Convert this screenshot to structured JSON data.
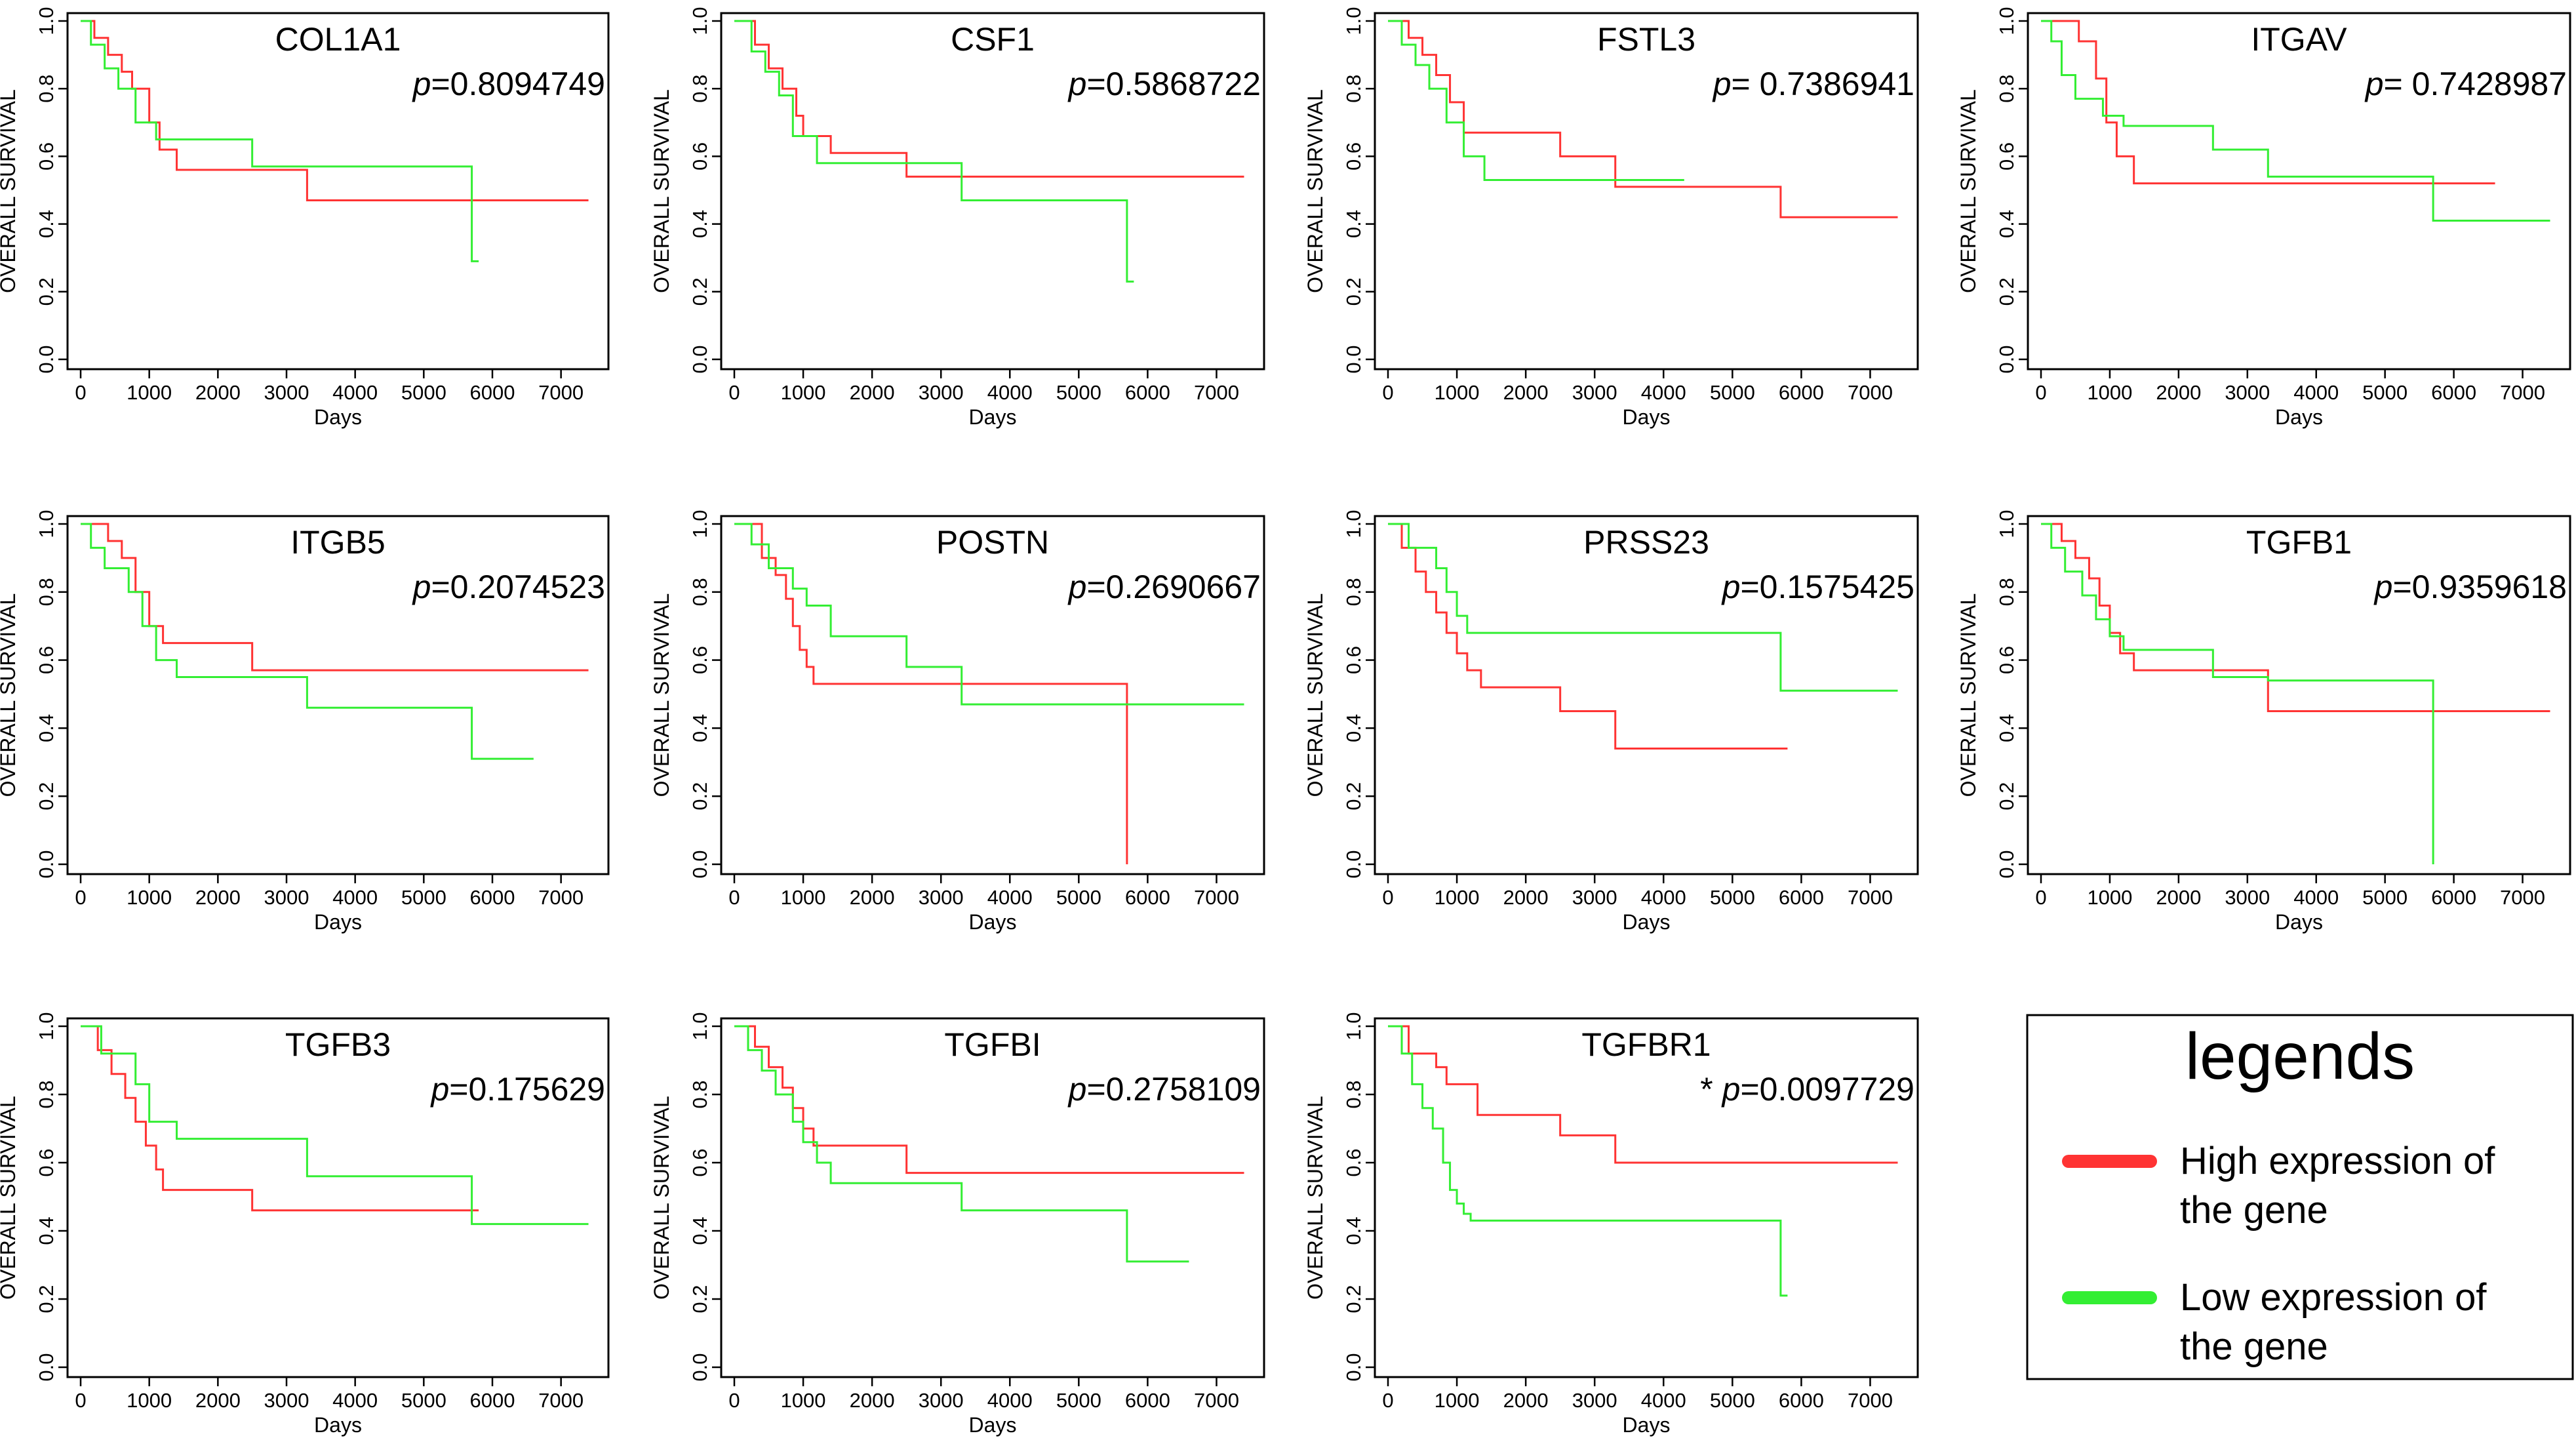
{
  "colors": {
    "high": "#ff3333",
    "low": "#33ee33",
    "axis": "#000000"
  },
  "common": {
    "xlabel": "Days",
    "ylabel": "OVERALL SURVIVAL",
    "xlim": [
      0,
      7500
    ],
    "ylim": [
      0,
      1.0
    ],
    "xticks": [
      0,
      1000,
      2000,
      3000,
      4000,
      5000,
      6000,
      7000
    ],
    "yticks": [
      0.0,
      0.2,
      0.4,
      0.6,
      0.8,
      1.0
    ],
    "xtick_labels": [
      "0",
      "1000",
      "2000",
      "3000",
      "4000",
      "5000",
      "6000",
      "7000"
    ],
    "ytick_labels": [
      "0.0",
      "0.2",
      "0.4",
      "0.6",
      "0.8",
      "1.0"
    ]
  },
  "legend": {
    "title": "legends",
    "items": [
      {
        "line1": "High expression of",
        "line2": "the gene",
        "color_key": "high"
      },
      {
        "line1": "Low expression of",
        "line2": "the gene",
        "color_key": "low"
      }
    ]
  },
  "chart_data": [
    {
      "type": "line",
      "title": "COL1A1",
      "pvalue": "p=0.8094749",
      "star": "",
      "series": [
        {
          "name": "High expression of the gene",
          "color_key": "high",
          "x": [
            0,
            200,
            400,
            600,
            750,
            1000,
            1150,
            1400,
            3300,
            7400
          ],
          "values": [
            1.0,
            0.95,
            0.9,
            0.85,
            0.8,
            0.7,
            0.62,
            0.56,
            0.47,
            0.47
          ]
        },
        {
          "name": "Low expression of the gene",
          "color_key": "low",
          "x": [
            0,
            150,
            350,
            550,
            800,
            1100,
            2500,
            5700,
            5700,
            5800
          ],
          "values": [
            1.0,
            0.93,
            0.86,
            0.8,
            0.7,
            0.65,
            0.57,
            0.57,
            0.29,
            0.29
          ]
        }
      ]
    },
    {
      "type": "line",
      "title": "CSF1",
      "pvalue": "p=0.5868722",
      "star": "",
      "series": [
        {
          "name": "High expression of the gene",
          "color_key": "high",
          "x": [
            0,
            300,
            500,
            700,
            900,
            1000,
            1400,
            2500,
            7400
          ],
          "values": [
            1.0,
            0.93,
            0.86,
            0.8,
            0.72,
            0.66,
            0.61,
            0.54,
            0.54
          ]
        },
        {
          "name": "Low expression of the gene",
          "color_key": "low",
          "x": [
            0,
            250,
            450,
            650,
            850,
            1200,
            3300,
            5700,
            5700,
            5800
          ],
          "values": [
            1.0,
            0.91,
            0.85,
            0.78,
            0.66,
            0.58,
            0.47,
            0.47,
            0.23,
            0.23
          ]
        }
      ]
    },
    {
      "type": "line",
      "title": "FSTL3",
      "pvalue": "p= 0.7386941",
      "star": "",
      "series": [
        {
          "name": "High expression of the gene",
          "color_key": "high",
          "x": [
            0,
            300,
            500,
            700,
            900,
            1100,
            2500,
            3300,
            5700,
            7400
          ],
          "values": [
            1.0,
            0.95,
            0.9,
            0.84,
            0.76,
            0.67,
            0.6,
            0.51,
            0.42,
            0.42
          ]
        },
        {
          "name": "Low expression of the gene",
          "color_key": "low",
          "x": [
            0,
            200,
            400,
            600,
            850,
            1100,
            1400,
            4300
          ],
          "values": [
            1.0,
            0.93,
            0.87,
            0.8,
            0.7,
            0.6,
            0.53,
            0.53
          ]
        }
      ]
    },
    {
      "type": "line",
      "title": "ITGAV",
      "pvalue": "p= 0.7428987",
      "star": "",
      "series": [
        {
          "name": "High expression of the gene",
          "color_key": "high",
          "x": [
            0,
            550,
            800,
            950,
            1100,
            1350,
            6600
          ],
          "values": [
            1.0,
            0.94,
            0.83,
            0.7,
            0.6,
            0.52,
            0.52
          ]
        },
        {
          "name": "Low expression of the gene",
          "color_key": "low",
          "x": [
            0,
            150,
            300,
            500,
            900,
            1200,
            2500,
            3300,
            5700,
            7400
          ],
          "values": [
            1.0,
            0.94,
            0.84,
            0.77,
            0.72,
            0.69,
            0.62,
            0.54,
            0.41,
            0.41
          ]
        }
      ]
    },
    {
      "type": "line",
      "title": "ITGB5",
      "pvalue": "p=0.2074523",
      "star": "",
      "series": [
        {
          "name": "High expression of the gene",
          "color_key": "high",
          "x": [
            0,
            400,
            600,
            800,
            1000,
            1200,
            2500,
            7400
          ],
          "values": [
            1.0,
            0.95,
            0.9,
            0.8,
            0.7,
            0.65,
            0.57,
            0.57
          ]
        },
        {
          "name": "Low expression of the gene",
          "color_key": "low",
          "x": [
            0,
            150,
            350,
            700,
            900,
            1100,
            1400,
            3300,
            5700,
            6600
          ],
          "values": [
            1.0,
            0.93,
            0.87,
            0.8,
            0.7,
            0.6,
            0.55,
            0.46,
            0.31,
            0.31
          ]
        }
      ]
    },
    {
      "type": "line",
      "title": "POSTN",
      "pvalue": "p=0.2690667",
      "star": "",
      "series": [
        {
          "name": "High expression of the gene",
          "color_key": "high",
          "x": [
            0,
            400,
            600,
            750,
            850,
            950,
            1050,
            1150,
            5700,
            5700
          ],
          "values": [
            1.0,
            0.9,
            0.85,
            0.78,
            0.7,
            0.63,
            0.58,
            0.53,
            0.53,
            0.0
          ]
        },
        {
          "name": "Low expression of the gene",
          "color_key": "low",
          "x": [
            0,
            250,
            500,
            850,
            1050,
            1400,
            2500,
            3300,
            7400
          ],
          "values": [
            1.0,
            0.94,
            0.87,
            0.81,
            0.76,
            0.67,
            0.58,
            0.47,
            0.47
          ]
        }
      ]
    },
    {
      "type": "line",
      "title": "PRSS23",
      "pvalue": "p=0.1575425",
      "star": "",
      "series": [
        {
          "name": "High expression of the gene",
          "color_key": "high",
          "x": [
            0,
            200,
            400,
            550,
            700,
            850,
            1000,
            1150,
            1350,
            2500,
            3300,
            5800
          ],
          "values": [
            1.0,
            0.93,
            0.86,
            0.8,
            0.74,
            0.68,
            0.62,
            0.57,
            0.52,
            0.45,
            0.34,
            0.34
          ]
        },
        {
          "name": "Low expression of the gene",
          "color_key": "low",
          "x": [
            0,
            300,
            700,
            850,
            1000,
            1150,
            5700,
            7400
          ],
          "values": [
            1.0,
            0.93,
            0.87,
            0.8,
            0.73,
            0.68,
            0.51,
            0.51
          ]
        }
      ]
    },
    {
      "type": "line",
      "title": "TGFB1",
      "pvalue": "p=0.9359618",
      "star": "",
      "series": [
        {
          "name": "High expression of the gene",
          "color_key": "high",
          "x": [
            0,
            300,
            500,
            700,
            850,
            1000,
            1150,
            1350,
            3300,
            7400
          ],
          "values": [
            1.0,
            0.95,
            0.9,
            0.84,
            0.76,
            0.68,
            0.62,
            0.57,
            0.45,
            0.45
          ]
        },
        {
          "name": "Low expression of the gene",
          "color_key": "low",
          "x": [
            0,
            150,
            350,
            600,
            800,
            1000,
            1200,
            2500,
            3300,
            5700,
            5700
          ],
          "values": [
            1.0,
            0.93,
            0.86,
            0.79,
            0.72,
            0.67,
            0.63,
            0.55,
            0.54,
            0.54,
            0.0
          ]
        }
      ]
    },
    {
      "type": "line",
      "title": "TGFB3",
      "pvalue": "p=0.175629",
      "star": "",
      "series": [
        {
          "name": "High expression of the gene",
          "color_key": "high",
          "x": [
            0,
            250,
            450,
            650,
            800,
            950,
            1100,
            1200,
            2500,
            5800
          ],
          "values": [
            1.0,
            0.93,
            0.86,
            0.79,
            0.72,
            0.65,
            0.58,
            0.52,
            0.46,
            0.46
          ]
        },
        {
          "name": "Low expression of the gene",
          "color_key": "low",
          "x": [
            0,
            300,
            800,
            1000,
            1400,
            3300,
            5700,
            7400
          ],
          "values": [
            1.0,
            0.92,
            0.83,
            0.72,
            0.67,
            0.56,
            0.42,
            0.42
          ]
        }
      ]
    },
    {
      "type": "line",
      "title": "TGFBI",
      "pvalue": "p=0.2758109",
      "star": "",
      "series": [
        {
          "name": "High expression of the gene",
          "color_key": "high",
          "x": [
            0,
            300,
            500,
            700,
            850,
            1000,
            1150,
            2500,
            7400
          ],
          "values": [
            1.0,
            0.94,
            0.88,
            0.82,
            0.76,
            0.7,
            0.65,
            0.57,
            0.57
          ]
        },
        {
          "name": "Low expression of the gene",
          "color_key": "low",
          "x": [
            0,
            200,
            400,
            600,
            850,
            1000,
            1200,
            1400,
            3300,
            5700,
            6600
          ],
          "values": [
            1.0,
            0.93,
            0.87,
            0.8,
            0.72,
            0.66,
            0.6,
            0.54,
            0.46,
            0.31,
            0.31
          ]
        }
      ]
    },
    {
      "type": "line",
      "title": "TGFBR1",
      "pvalue": "p=0.0097729",
      "star": "* ",
      "series": [
        {
          "name": "High expression of the gene",
          "color_key": "high",
          "x": [
            0,
            300,
            700,
            850,
            1300,
            2500,
            3300,
            7400
          ],
          "values": [
            1.0,
            0.92,
            0.88,
            0.83,
            0.74,
            0.68,
            0.6,
            0.6
          ]
        },
        {
          "name": "Low expression of the gene",
          "color_key": "low",
          "x": [
            0,
            200,
            350,
            500,
            650,
            800,
            900,
            1000,
            1100,
            1200,
            5700,
            5700,
            5800
          ],
          "values": [
            1.0,
            0.92,
            0.83,
            0.76,
            0.7,
            0.6,
            0.52,
            0.48,
            0.45,
            0.43,
            0.43,
            0.21,
            0.21
          ]
        }
      ]
    }
  ]
}
